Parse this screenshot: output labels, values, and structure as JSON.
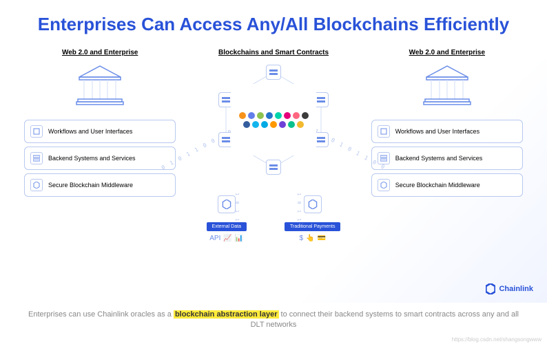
{
  "title": "Enterprises Can Access Any/All Blockchains Efficiently",
  "title_color": "#2952d8",
  "columns": {
    "left": {
      "heading": "Web 2.0 and Enterprise",
      "items": [
        "Workflows and User Interfaces",
        "Backend Systems and Services",
        "Secure Blockchain Middleware"
      ]
    },
    "center": {
      "heading": "Blockchains and Smart Contracts",
      "logo_colors": [
        "#f7931a",
        "#627eea",
        "#8dc351",
        "#2775ca",
        "#00d4aa",
        "#e6007a",
        "#ff6680",
        "#3c3c3d",
        "#345d9d",
        "#13b5ec",
        "#00aae4",
        "#ff9900",
        "#6f41d8",
        "#0ac18e",
        "#f3ba2f"
      ],
      "bottom": {
        "left": {
          "label": "External Data",
          "icons": [
            "API",
            "📈",
            "📊"
          ]
        },
        "right": {
          "label": "Traditional Payments",
          "icons": [
            "$",
            "👆",
            "💳"
          ]
        }
      }
    },
    "right": {
      "heading": "Web 2.0 and Enterprise",
      "items": [
        "Workflows and User Interfaces",
        "Backend Systems and Services",
        "Secure Blockchain Middleware"
      ]
    }
  },
  "binary": {
    "diag": "0 1 0 1 1 0 0 1 0 1 1 0 0",
    "vert": "1 0 1 1"
  },
  "brand": "Chainlink",
  "caption": {
    "pre": "Enterprises can use Chainlink oracles as a ",
    "highlight": "blockchain abstraction layer",
    "post": " to connect their backend systems to smart contracts across any and all DLT networks"
  },
  "watermark": "https://blog.csdn.net/shangsongwww",
  "colors": {
    "accent": "#2952d8",
    "border": "#b8c8f0",
    "node_fill": "#6b8de8"
  }
}
